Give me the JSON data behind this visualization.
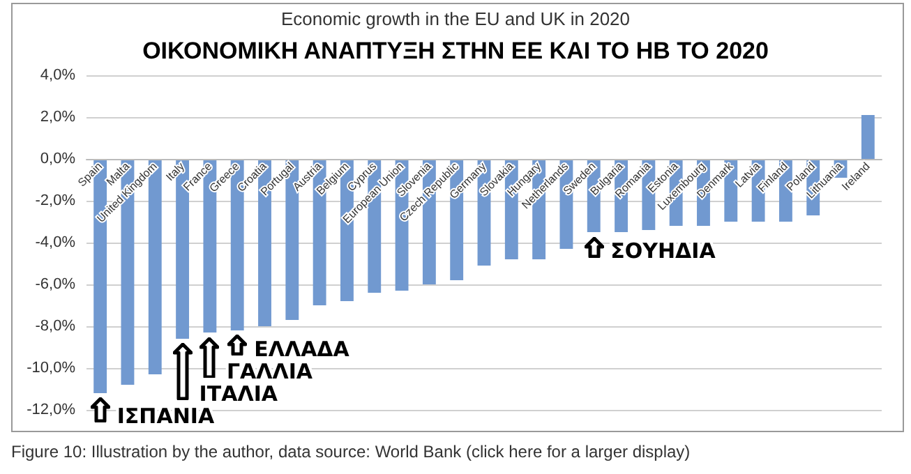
{
  "chart_data": {
    "type": "bar",
    "title": "Economic growth in the EU and UK in 2020",
    "subtitle": "ΟΙΚΟΝΟΜΙΚΗ ΑΝΑΠΤΥΞΗ ΣΤΗΝ ΕΕ ΚΑΙ ΤΟ ΗΒ ΤΟ 2020",
    "categories": [
      "Spain",
      "Malta",
      "United Kingdom",
      "Italy",
      "France",
      "Greece",
      "Croatia",
      "Portugal",
      "Austria",
      "Belgium",
      "Cyprus",
      "European Union",
      "Slovenia",
      "Czech Republic",
      "Germany",
      "Slovakia",
      "Hungary",
      "Netherlands",
      "Sweden",
      "Bulgaria",
      "Romania",
      "Estonia",
      "Luxembourg",
      "Denmark",
      "Latvia",
      "Finland",
      "Poland",
      "Lithuania",
      "Ireland"
    ],
    "values": [
      -11.2,
      -10.8,
      -10.3,
      -8.6,
      -8.3,
      -8.2,
      -8.0,
      -7.7,
      -7.0,
      -6.8,
      -6.4,
      -6.3,
      -6.0,
      -5.8,
      -5.1,
      -4.8,
      -4.8,
      -4.3,
      -3.5,
      -3.5,
      -3.4,
      -3.2,
      -3.2,
      -3.0,
      -3.0,
      -3.0,
      -2.7,
      -0.9,
      2.1
    ],
    "color": "#7199d0",
    "ylim": [
      -12,
      4
    ],
    "yticks": [
      {
        "value": -12,
        "label": "-12,0%"
      },
      {
        "value": -10,
        "label": "-10,0%"
      },
      {
        "value": -8,
        "label": "-8,0%"
      },
      {
        "value": -6,
        "label": "-6,0%"
      },
      {
        "value": -4,
        "label": "-4,0%"
      },
      {
        "value": -2,
        "label": "-2,0%"
      },
      {
        "value": 0,
        "label": "0,0%"
      },
      {
        "value": 2,
        "label": "2,0%"
      },
      {
        "value": 4,
        "label": "4,0%"
      }
    ],
    "grid": "y",
    "annotations": [
      {
        "text": "ΙΣΠΑΝΙΑ",
        "x": "Spain",
        "y": -11.2
      },
      {
        "text": "ΙΤΑΛΙΑ",
        "x": "Italy",
        "y": -8.6
      },
      {
        "text": "ΓΑΛΛΙΑ",
        "x": "France",
        "y": -8.3
      },
      {
        "text": "ΕΛΛΑΔΑ",
        "x": "Greece",
        "y": -8.2
      },
      {
        "text": "ΣΟΥΗΔΙΑ",
        "x": "Sweden",
        "y": -3.5
      },
      "Figure 10: Illustration by the author, data source: World Bank (click here for a larger display)"
    ]
  }
}
